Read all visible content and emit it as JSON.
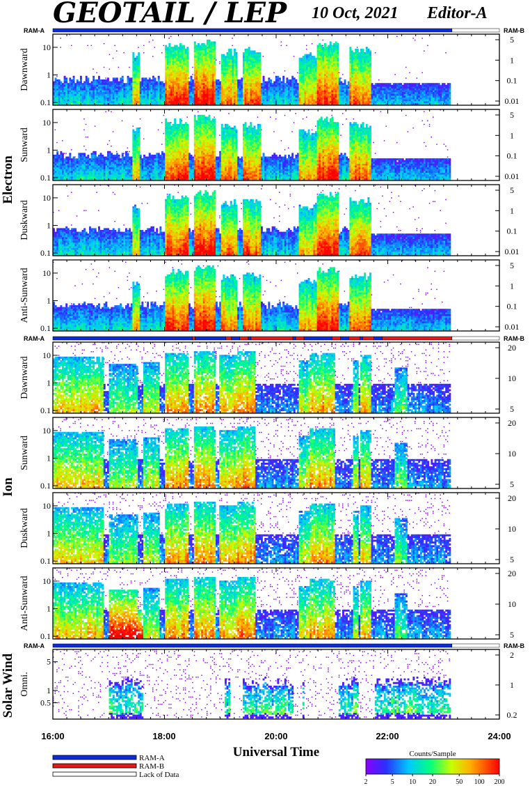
{
  "header": {
    "title": "GEOTAIL / LEP",
    "date": "10 Oct, 2021",
    "editor": "Editor-A"
  },
  "chart_data": {
    "type": "heatmap",
    "xaxis": {
      "label": "Universal Time",
      "ticks": [
        "16:00",
        "18:00",
        "20:00",
        "22:00",
        "24:00"
      ],
      "range_hours": [
        16,
        24
      ],
      "data_end_hour": 23.15
    },
    "groups": [
      {
        "name": "Electron",
        "ram_left": "RAM-A",
        "ram_right": "RAM-B",
        "mode_bar": "mode_bar_electron",
        "panels": [
          {
            "name": "Dawnward",
            "ylim": [
              0.08,
              30
            ],
            "left_ticks": [
              "10",
              "1",
              "0.1"
            ],
            "right_ticks": [
              "5",
              "1",
              "0.1",
              "0.01"
            ],
            "profile": "electron",
            "seed": 11
          },
          {
            "name": "Sunward",
            "ylim": [
              0.08,
              30
            ],
            "left_ticks": [
              "10",
              "1",
              "0.1"
            ],
            "right_ticks": [
              "5",
              "1",
              "0.1",
              "0.01"
            ],
            "profile": "electron",
            "seed": 23
          },
          {
            "name": "Duskward",
            "ylim": [
              0.08,
              30
            ],
            "left_ticks": [
              "10",
              "1",
              "0.1"
            ],
            "right_ticks": [
              "5",
              "1",
              "0.1",
              "0.01"
            ],
            "profile": "electron",
            "seed": 37
          },
          {
            "name": "Anti-Sunward",
            "ylim": [
              0.08,
              30
            ],
            "left_ticks": [
              "10",
              "1",
              "0.1"
            ],
            "right_ticks": [
              "5",
              "1",
              "0.1",
              "0.01"
            ],
            "profile": "electron",
            "seed": 41
          }
        ]
      },
      {
        "name": "Ion",
        "ram_left": "RAM-A",
        "ram_right": "RAM-B",
        "mode_bar": "mode_bar_ion",
        "panels": [
          {
            "name": "Dawnward",
            "ylim": [
              0.08,
              30
            ],
            "left_ticks": [
              "10",
              "1",
              "0.1"
            ],
            "right_ticks": [
              "20",
              "10",
              "5"
            ],
            "profile": "ion",
            "seed": 53
          },
          {
            "name": "Sunward",
            "ylim": [
              0.08,
              30
            ],
            "left_ticks": [
              "10",
              "1",
              "0.1"
            ],
            "right_ticks": [
              "20",
              "10",
              "5"
            ],
            "profile": "ion",
            "seed": 61
          },
          {
            "name": "Duskward",
            "ylim": [
              0.08,
              30
            ],
            "left_ticks": [
              "10",
              "1",
              "0.1"
            ],
            "right_ticks": [
              "20",
              "10",
              "5"
            ],
            "profile": "ion",
            "seed": 73
          },
          {
            "name": "Anti-Sunward",
            "ylim": [
              0.08,
              30
            ],
            "left_ticks": [
              "10",
              "1",
              "0.1"
            ],
            "right_ticks": [
              "20",
              "10",
              "5"
            ],
            "profile": "ion_anti",
            "seed": 89
          }
        ]
      },
      {
        "name": "Solar Wind",
        "ram_left": "RAM-A",
        "ram_right": "RAM-B",
        "mode_bar": "mode_bar_sw",
        "panels": [
          {
            "name": "Omni.",
            "ylim": [
              0.2,
              10
            ],
            "left_ticks": [
              "5",
              "1",
              "0.5"
            ],
            "right_ticks": [
              "2",
              "1",
              "0.2"
            ],
            "profile": "sw",
            "seed": 97
          }
        ]
      }
    ],
    "mode_bar_electron": [
      {
        "start": 16,
        "end": 23.15,
        "mode": "RAM-A"
      },
      {
        "start": 23.15,
        "end": 24,
        "mode": "Lack of Data"
      }
    ],
    "mode_bar_ion": [
      {
        "start": 16,
        "end": 18.5,
        "mode": "RAM-A"
      },
      {
        "start": 18.5,
        "end": 18.55,
        "mode": "RAM-B"
      },
      {
        "start": 18.55,
        "end": 19.1,
        "mode": "RAM-A"
      },
      {
        "start": 19.1,
        "end": 19.2,
        "mode": "RAM-B"
      },
      {
        "start": 19.2,
        "end": 19.35,
        "mode": "RAM-A"
      },
      {
        "start": 19.35,
        "end": 19.5,
        "mode": "RAM-B"
      },
      {
        "start": 19.5,
        "end": 19.55,
        "mode": "RAM-A"
      },
      {
        "start": 19.55,
        "end": 20.3,
        "mode": "RAM-B"
      },
      {
        "start": 20.3,
        "end": 20.35,
        "mode": "RAM-A"
      },
      {
        "start": 20.35,
        "end": 20.5,
        "mode": "RAM-B"
      },
      {
        "start": 20.5,
        "end": 21.0,
        "mode": "RAM-A"
      },
      {
        "start": 21.0,
        "end": 21.15,
        "mode": "RAM-B"
      },
      {
        "start": 21.15,
        "end": 21.3,
        "mode": "RAM-A"
      },
      {
        "start": 21.3,
        "end": 21.5,
        "mode": "RAM-B"
      },
      {
        "start": 21.5,
        "end": 21.55,
        "mode": "RAM-A"
      },
      {
        "start": 21.55,
        "end": 21.75,
        "mode": "RAM-B"
      },
      {
        "start": 21.75,
        "end": 21.9,
        "mode": "RAM-A"
      },
      {
        "start": 21.9,
        "end": 23.15,
        "mode": "RAM-B"
      },
      {
        "start": 23.15,
        "end": 24,
        "mode": "Lack of Data"
      }
    ],
    "mode_bar_sw": [
      {
        "start": 16,
        "end": 23.15,
        "mode": "RAM-A"
      },
      {
        "start": 23.15,
        "end": 24,
        "mode": "Lack of Data"
      }
    ],
    "colorbar": {
      "label": "Counts/Sample",
      "ticks": [
        "2",
        "5",
        "10",
        "20",
        "50",
        "100",
        "200"
      ],
      "range": [
        2,
        200
      ],
      "scale": "log"
    },
    "legend": [
      {
        "label": "RAM-A",
        "color": "#0b2ad8"
      },
      {
        "label": "RAM-B",
        "color": "#e01b1b"
      },
      {
        "label": "Lack of Data",
        "color": "#ffffff"
      }
    ]
  }
}
